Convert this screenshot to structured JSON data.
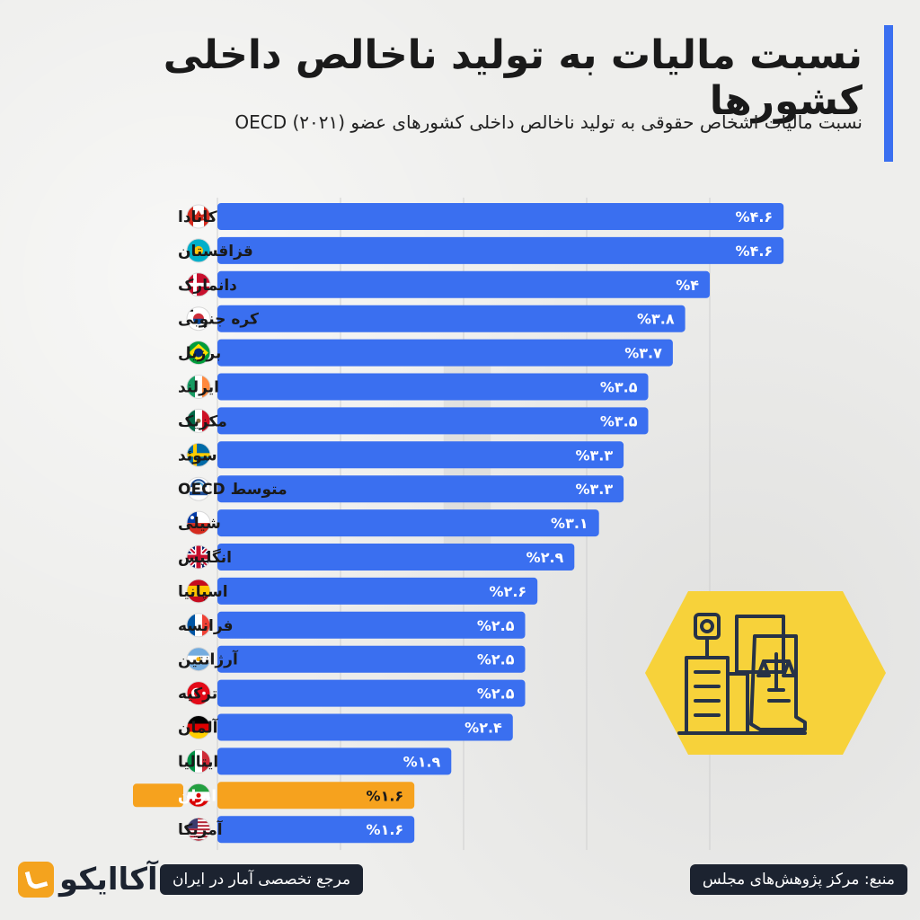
{
  "header": {
    "title": "نسبت مالیات به تولید ناخالص داخلی کشورها",
    "subtitle": "نسبت مالیات اشخاص حقوقی به تولید ناخالص داخلی کشورهای عضو OECD (۲۰۲۱)"
  },
  "footer": {
    "source": "منبع: مرکز پژوهش‌های مجلس",
    "tagline": "مرجع تخصصی آمار در ایران",
    "logo_text": "آکاایکو"
  },
  "colors": {
    "bar": "#3a6ff0",
    "highlight_bar": "#f6a21e",
    "grid": "#cfcfcf",
    "label": "#1a1a1a",
    "bar_label": "#ffffff",
    "hex_fill": "#f7d23a",
    "icon_stroke": "#263247"
  },
  "chart_data": {
    "type": "bar",
    "orientation": "horizontal",
    "title": "نسبت مالیات به تولید ناخالص داخلی کشورها",
    "subtitle": "نسبت مالیات اشخاص حقوقی به تولید ناخالص داخلی کشورهای عضو OECD (۲۰۲۱)",
    "xlabel": "",
    "ylabel": "",
    "xlim": [
      0,
      4.6
    ],
    "grid": true,
    "unit": "%",
    "highlight": "ایران",
    "categories": [
      "کانادا",
      "قزاقستان",
      "دانمارک",
      "کره جنوبی",
      "برزیل",
      "ایرلند",
      "مکزیک",
      "سوئد",
      "متوسط OECD",
      "شیلی",
      "انگلیس",
      "اسپانیا",
      "فرانسه",
      "آرژانتین",
      "ترکیه",
      "آلمان",
      "ایتالیا",
      "ایران",
      "آمریکا"
    ],
    "values": [
      4.6,
      4.6,
      4.0,
      3.8,
      3.7,
      3.5,
      3.5,
      3.3,
      3.3,
      3.1,
      2.9,
      2.6,
      2.5,
      2.5,
      2.5,
      2.4,
      1.9,
      1.6,
      1.6
    ],
    "value_labels": [
      "%۴.۶",
      "%۴.۶",
      "%۴",
      "%۳.۸",
      "%۳.۷",
      "%۳.۵",
      "%۳.۵",
      "%۳.۳",
      "%۳.۳",
      "%۳.۱",
      "%۲.۹",
      "%۲.۶",
      "%۲.۵",
      "%۲.۵",
      "%۲.۵",
      "%۲.۴",
      "%۱.۹",
      "%۱.۶",
      "%۱.۶"
    ],
    "flags": [
      "canada-flag-icon",
      "kazakhstan-flag-icon",
      "denmark-flag-icon",
      "south-korea-flag-icon",
      "brazil-flag-icon",
      "ireland-flag-icon",
      "mexico-flag-icon",
      "sweden-flag-icon",
      "oecd-logo-icon",
      "chile-flag-icon",
      "uk-flag-icon",
      "spain-flag-icon",
      "france-flag-icon",
      "argentina-flag-icon",
      "turkey-flag-icon",
      "germany-flag-icon",
      "italy-flag-icon",
      "iran-flag-icon",
      "usa-flag-icon"
    ]
  }
}
